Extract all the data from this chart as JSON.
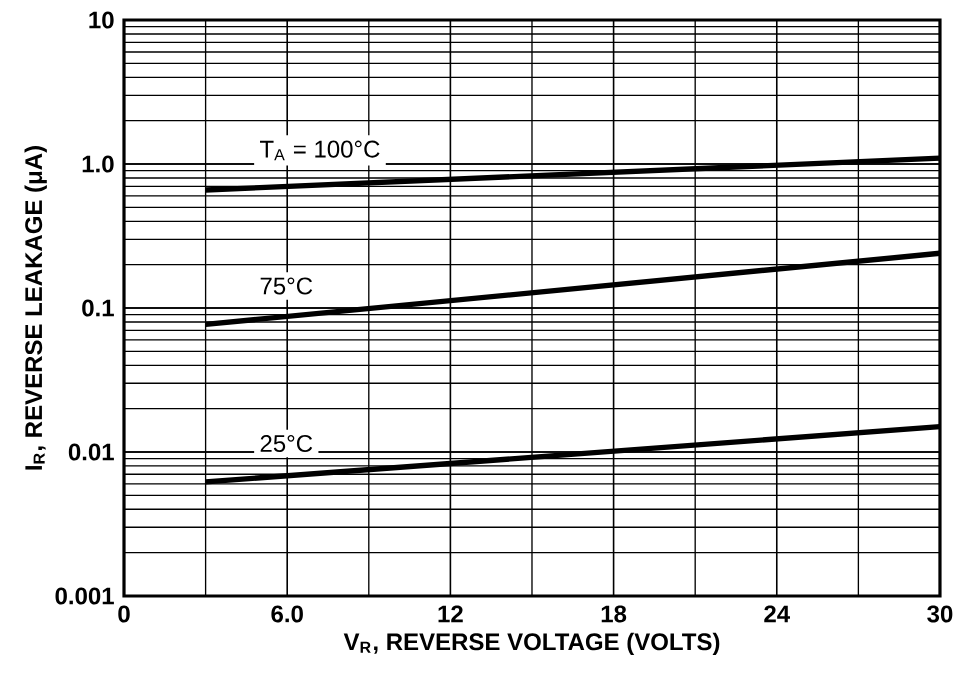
{
  "chart_data": {
    "type": "line",
    "xlabel": "V$_{R}$, REVERSE VOLTAGE (VOLTS)",
    "ylabel": "I$_{R}$, REVERSE LEAKAGE (μA)",
    "log": "y",
    "grid": true,
    "marker": "none",
    "line_style": "solid",
    "xlim": [
      0,
      30
    ],
    "xticks": [
      0,
      {
        "value": 6,
        "label": "6.0"
      },
      12,
      18,
      24,
      30
    ],
    "ylim": [
      0.001,
      10
    ],
    "yticks": [
      0.001,
      0.01,
      0.1,
      {
        "value": 1,
        "label": "1.0"
      },
      10
    ],
    "x": [
      3,
      30
    ],
    "series": [
      {
        "name": "T$_{A}$ = 100°C",
        "color": "#000000",
        "values": [
          0.66,
          1.1
        ]
      },
      {
        "name": "75°C",
        "color": "#000000",
        "values": [
          0.077,
          0.24
        ]
      },
      {
        "name": "25°C",
        "color": "#000000",
        "values": [
          0.0062,
          0.015
        ]
      }
    ]
  }
}
